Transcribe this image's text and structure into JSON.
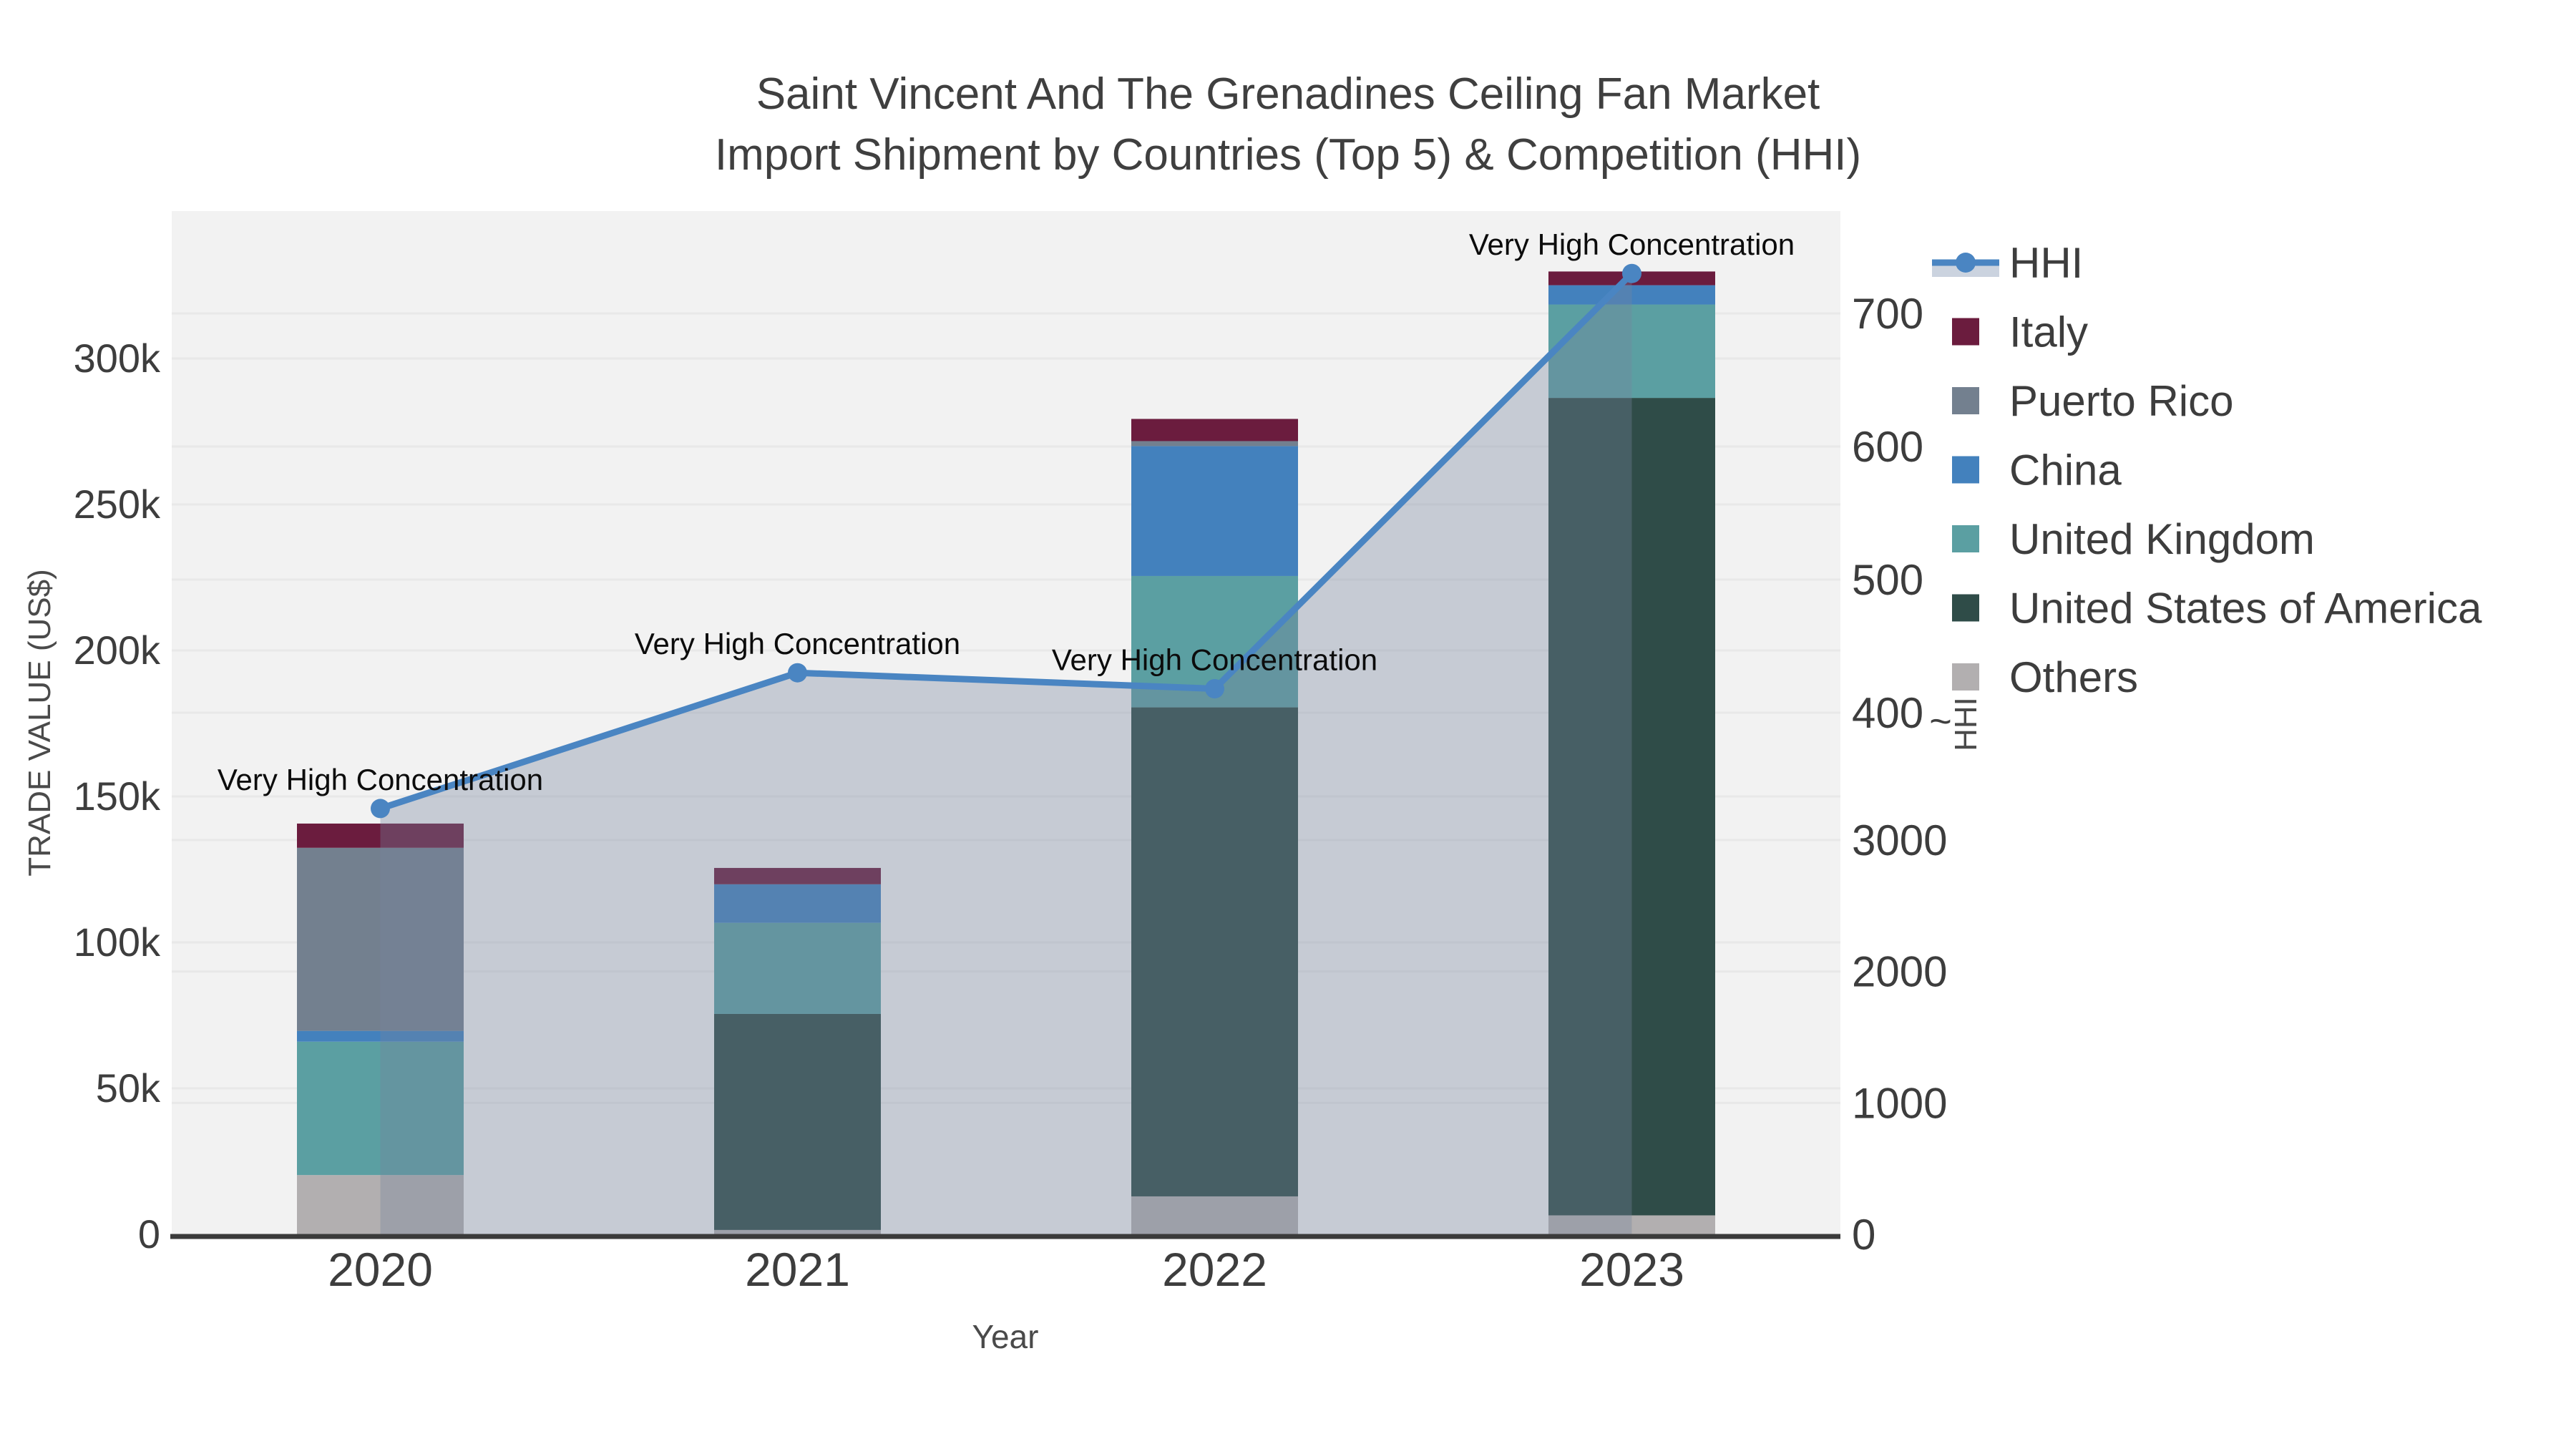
{
  "title": {
    "line1": "Saint Vincent And The Grenadines Ceiling Fan Market",
    "line2": "Import Shipment by Countries (Top 5) & Competition (HHI)"
  },
  "axes": {
    "x": {
      "label": "Year",
      "ticks": [
        "2020",
        "2021",
        "2022",
        "2023"
      ]
    },
    "y_left": {
      "label": "TRADE VALUE (US$)",
      "ticks": [
        "0",
        "50k",
        "100k",
        "150k",
        "200k",
        "250k",
        "300k"
      ]
    },
    "y_right": {
      "label": "HHI",
      "ticks_bottom": [
        "0",
        "1000",
        "2000",
        "3000"
      ],
      "ticks_top": [
        "400",
        "500",
        "600",
        "700"
      ],
      "break_marker": "~"
    }
  },
  "annotations": {
    "label": "Very High Concentration"
  },
  "legend": [
    {
      "label": "HHI",
      "type": "line",
      "color": "#4A85C2",
      "band": "#CBD3DF"
    },
    {
      "label": "Italy",
      "type": "swatch",
      "color": "#6B1C3E"
    },
    {
      "label": "Puerto Rico",
      "type": "swatch",
      "color": "#73808F"
    },
    {
      "label": "China",
      "type": "swatch",
      "color": "#4381BD"
    },
    {
      "label": "United Kingdom",
      "type": "swatch",
      "color": "#5B9FA2"
    },
    {
      "label": "United States of America",
      "type": "swatch",
      "color": "#2F4C48"
    },
    {
      "label": "Others",
      "type": "swatch",
      "color": "#B2AFB0"
    }
  ],
  "chart_data": {
    "type": "bar+line",
    "title": "Saint Vincent And The Grenadines Ceiling Fan Market — Import Shipment by Countries (Top 5) & Competition (HHI)",
    "categories": [
      "2020",
      "2021",
      "2022",
      "2023"
    ],
    "xlabel": "Year",
    "ylabel_left": "TRADE VALUE (US$)",
    "ylabel_right": "HHI",
    "ylim_left": [
      0,
      350000
    ],
    "grid": true,
    "legend_position": "right",
    "plot_background": "#f2f2f2",
    "series": [
      {
        "name": "Others",
        "color": "#B2AFB0",
        "values": [
          20300,
          1500,
          13000,
          6500
        ]
      },
      {
        "name": "United States of America",
        "color": "#2F4C48",
        "values": [
          0,
          74000,
          167500,
          280000
        ]
      },
      {
        "name": "United Kingdom",
        "color": "#5B9FA2",
        "values": [
          45700,
          31200,
          45000,
          32000
        ]
      },
      {
        "name": "China",
        "color": "#4381BD",
        "values": [
          3700,
          13200,
          44500,
          6600
        ]
      },
      {
        "name": "Puerto Rico",
        "color": "#73808F",
        "values": [
          62700,
          0,
          1700,
          0
        ]
      },
      {
        "name": "Italy",
        "color": "#6B1C3E",
        "values": [
          8300,
          5600,
          7600,
          4700
        ]
      }
    ],
    "totals": [
      140700,
      125500,
      279300,
      329800
    ],
    "hhi": {
      "name": "HHI",
      "color": "#4A85C2",
      "area_fill": "rgba(118,132,158,0.35)",
      "values": [
        3240,
        4300,
        4180,
        7300
      ],
      "axis_note": "broken right axis: bottom segment 0-3000, top segment labeled 400-700",
      "point_annotations": [
        "Very High Concentration",
        "Very High Concentration",
        "Very High Concentration",
        "Very High Concentration"
      ]
    }
  }
}
